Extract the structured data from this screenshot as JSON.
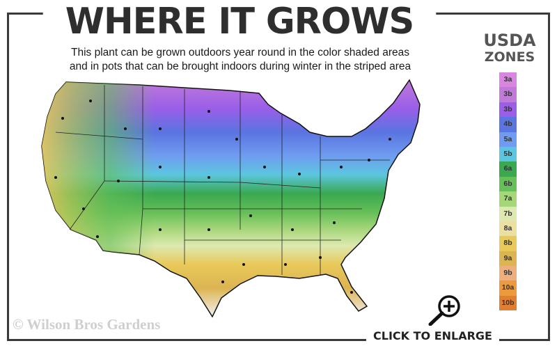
{
  "header": {
    "title": "WHERE IT GROWS",
    "subtitle_line1": "This plant can be grown outdoors year round in the color shaded areas",
    "subtitle_line2": "and in pots that can be brought indoors during winter in the striped area"
  },
  "legend": {
    "title_line1": "USDA",
    "title_line2": "ZONES",
    "zones": [
      {
        "label": "3a",
        "color": "#d986e0"
      },
      {
        "label": "3b",
        "color": "#c07ad8"
      },
      {
        "label": "3b",
        "color": "#9a5ee8"
      },
      {
        "label": "4b",
        "color": "#5a74e0"
      },
      {
        "label": "5a",
        "color": "#6f9cf0"
      },
      {
        "label": "5b",
        "color": "#5cc6de"
      },
      {
        "label": "6a",
        "color": "#3aa850"
      },
      {
        "label": "6b",
        "color": "#66bf58"
      },
      {
        "label": "7a",
        "color": "#a6d67a"
      },
      {
        "label": "7b",
        "color": "#dde9b0"
      },
      {
        "label": "8a",
        "color": "#ece0a0"
      },
      {
        "label": "8b",
        "color": "#e8c95a"
      },
      {
        "label": "9a",
        "color": "#dcb452"
      },
      {
        "label": "9b",
        "color": "#edb07c"
      },
      {
        "label": "10a",
        "color": "#eb9a3e"
      },
      {
        "label": "10b",
        "color": "#e07f30"
      }
    ]
  },
  "footer": {
    "copyright": "© Wilson Bros Gardens",
    "enlarge_label": "CLICK TO ENLARGE",
    "enlarge_icon": "magnifier-plus-icon"
  }
}
